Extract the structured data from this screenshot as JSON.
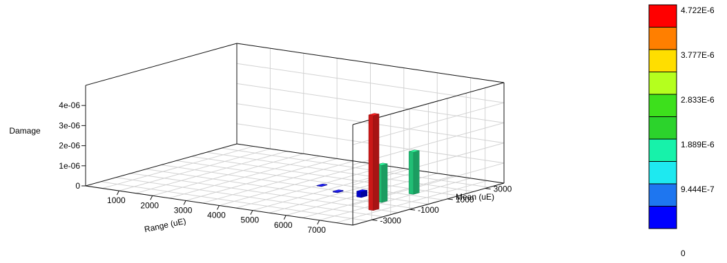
{
  "chart_data": {
    "type": "bar3d",
    "zlabel": "Damage",
    "xlabel": "Range (uE)",
    "ylabel": "Mean (uE)",
    "z_ticks": [
      "4e-06",
      "3e-06",
      "2e-06",
      "1e-06",
      "0"
    ],
    "z_tick_values": [
      4e-06,
      3e-06,
      2e-06,
      1e-06,
      0
    ],
    "x_ticks": [
      "1000",
      "2000",
      "3000",
      "4000",
      "5000",
      "6000",
      "7000"
    ],
    "x_tick_values": [
      1000,
      2000,
      3000,
      4000,
      5000,
      6000,
      7000
    ],
    "y_ticks": [
      "3000",
      "1000",
      "-1000",
      "-3000"
    ],
    "y_tick_values": [
      3000,
      1000,
      -1000,
      -3000
    ],
    "xlim": [
      0,
      8000
    ],
    "ylim": [
      -4000,
      4000
    ],
    "zlim": [
      0,
      5e-06
    ],
    "grid": true,
    "bars": [
      {
        "range": 4600,
        "mean": 380,
        "damage": 2e-08,
        "color": "#1a1aff"
      },
      {
        "range": 5350,
        "mean": -100,
        "damage": 4e-08,
        "color": "#1a1aff"
      },
      {
        "range": 6150,
        "mean": -250,
        "damage": 2.8e-07,
        "color": "#0000e6"
      },
      {
        "range": 6900,
        "mean": -500,
        "damage": 1.85e-06,
        "color": "#27e08a"
      },
      {
        "range": 6950,
        "mean": 1100,
        "damage": 2.1e-06,
        "color": "#27e08a"
      },
      {
        "range": 7300,
        "mean": -1650,
        "damage": 4.722e-06,
        "color": "#ee1c1c"
      }
    ],
    "colorbar": {
      "labels": [
        "4.722E-6",
        "3.777E-6",
        "2.833E-6",
        "1.889E-6",
        "9.444E-7",
        "0"
      ],
      "colors": [
        "#ff0000",
        "#ff7f00",
        "#ffde00",
        "#b5ff1e",
        "#3de01c",
        "#2cd32c",
        "#17f2aa",
        "#1ee9f0",
        "#1e76f0",
        "#0000ff"
      ]
    }
  }
}
